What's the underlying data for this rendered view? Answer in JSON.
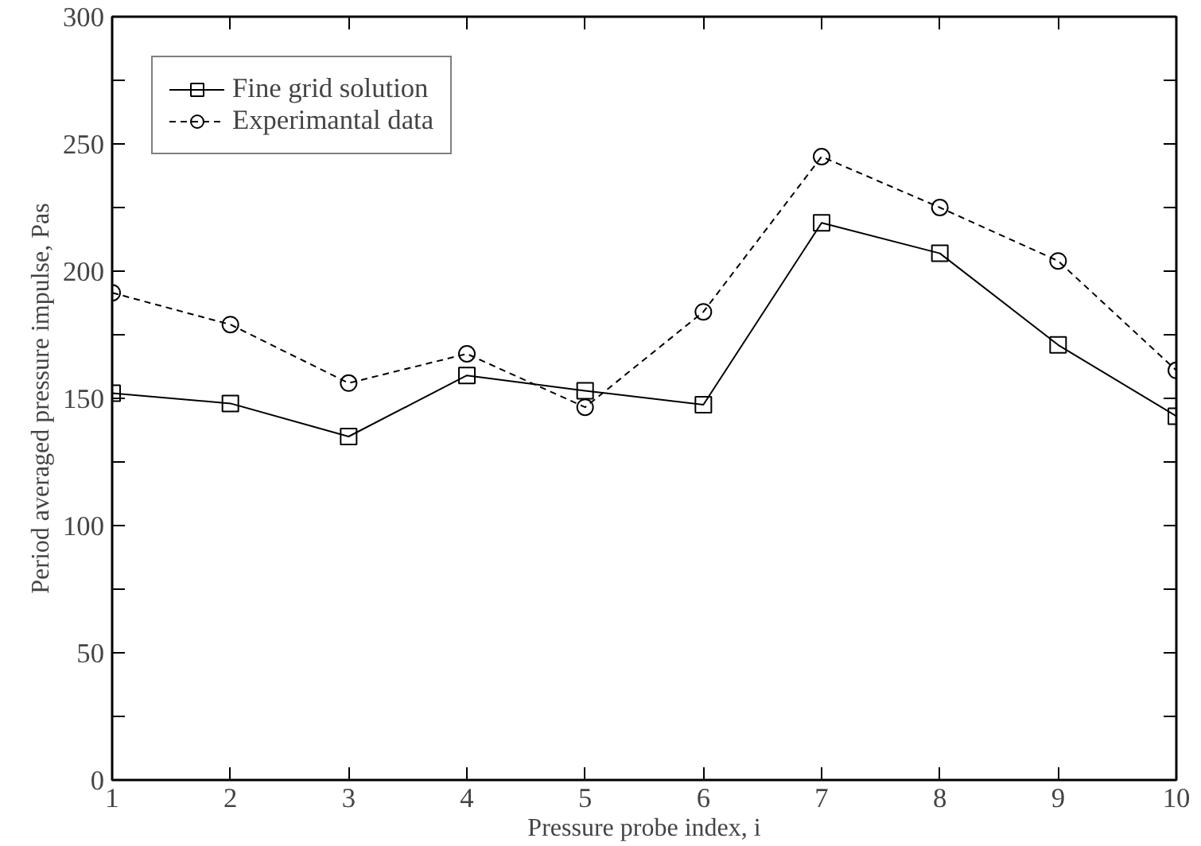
{
  "chart_data": {
    "type": "line",
    "xlabel": "Pressure probe index, i",
    "ylabel": "Period averaged pressure impulse, Pas",
    "x": [
      1,
      2,
      3,
      4,
      5,
      6,
      7,
      8,
      9,
      10
    ],
    "series": [
      {
        "name": "Fine grid solution",
        "color": "#000000",
        "marker": "square",
        "line_style": "solid",
        "values": [
          152,
          148,
          135,
          159,
          153,
          147.5,
          219,
          207,
          171,
          143
        ]
      },
      {
        "name": "Experimantal data",
        "color": "#000000",
        "marker": "circle",
        "line_style": "dashed",
        "values": [
          191.5,
          179,
          156,
          167.5,
          146.5,
          184,
          245,
          225,
          204,
          161
        ]
      }
    ],
    "xlim": [
      1,
      10
    ],
    "xticks": [
      1,
      2,
      3,
      4,
      5,
      6,
      7,
      8,
      9,
      10
    ],
    "ylim": [
      0,
      300
    ],
    "yticks": [
      0,
      {
        "value": 25,
        "label": null
      },
      50,
      {
        "value": 75,
        "label": null
      },
      100,
      {
        "value": 125,
        "label": null
      },
      150,
      {
        "value": 175,
        "label": null
      },
      200,
      {
        "value": 225,
        "label": null
      },
      250,
      {
        "value": 275,
        "label": null
      },
      300
    ],
    "grid": false,
    "legend": "top left"
  }
}
